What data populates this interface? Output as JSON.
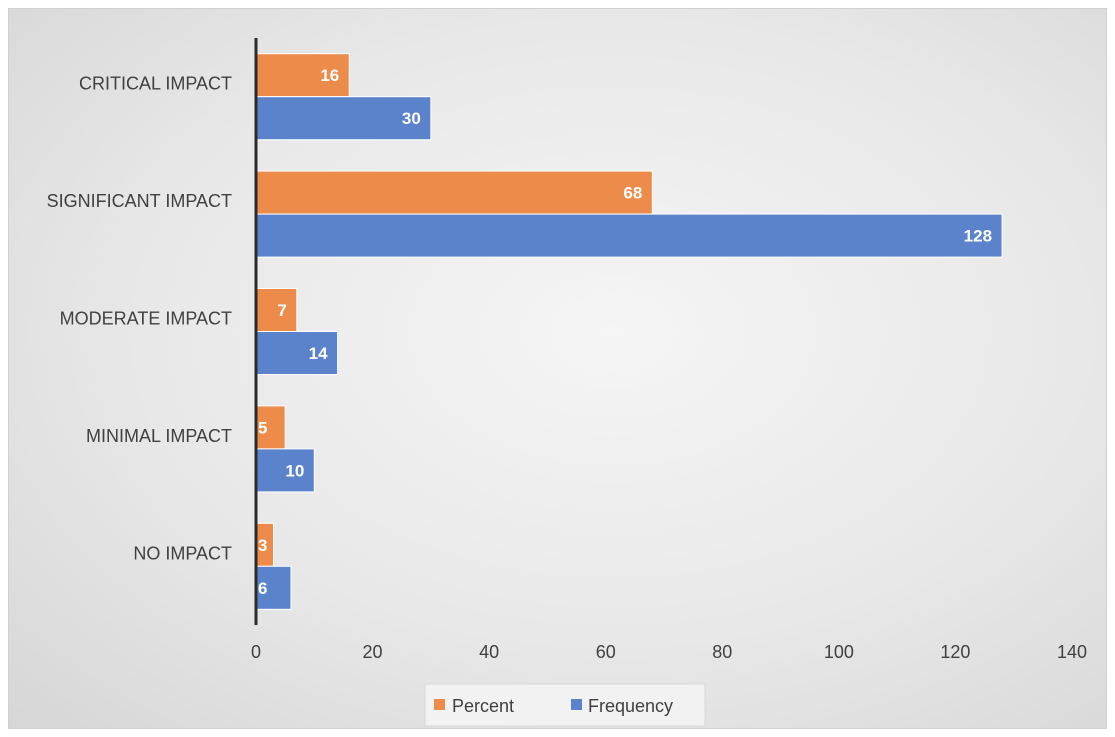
{
  "chart_data": {
    "type": "bar",
    "orientation": "horizontal",
    "categories": [
      "CRITICAL IMPACT",
      "SIGNIFICANT IMPACT",
      "MODERATE IMPACT",
      "MINIMAL IMPACT",
      "NO IMPACT"
    ],
    "series": [
      {
        "name": "Percent",
        "values": [
          16,
          68,
          7,
          5,
          3
        ],
        "color": "#ED8B4A"
      },
      {
        "name": "Frequency",
        "values": [
          30,
          128,
          14,
          10,
          6
        ],
        "color": "#5B83CC"
      }
    ],
    "xlim": [
      0,
      140
    ],
    "xticks": [
      "0",
      "20",
      "40",
      "60",
      "80",
      "100",
      "120",
      "140"
    ],
    "grid": false,
    "legend": "bottom",
    "data_labels": true
  }
}
